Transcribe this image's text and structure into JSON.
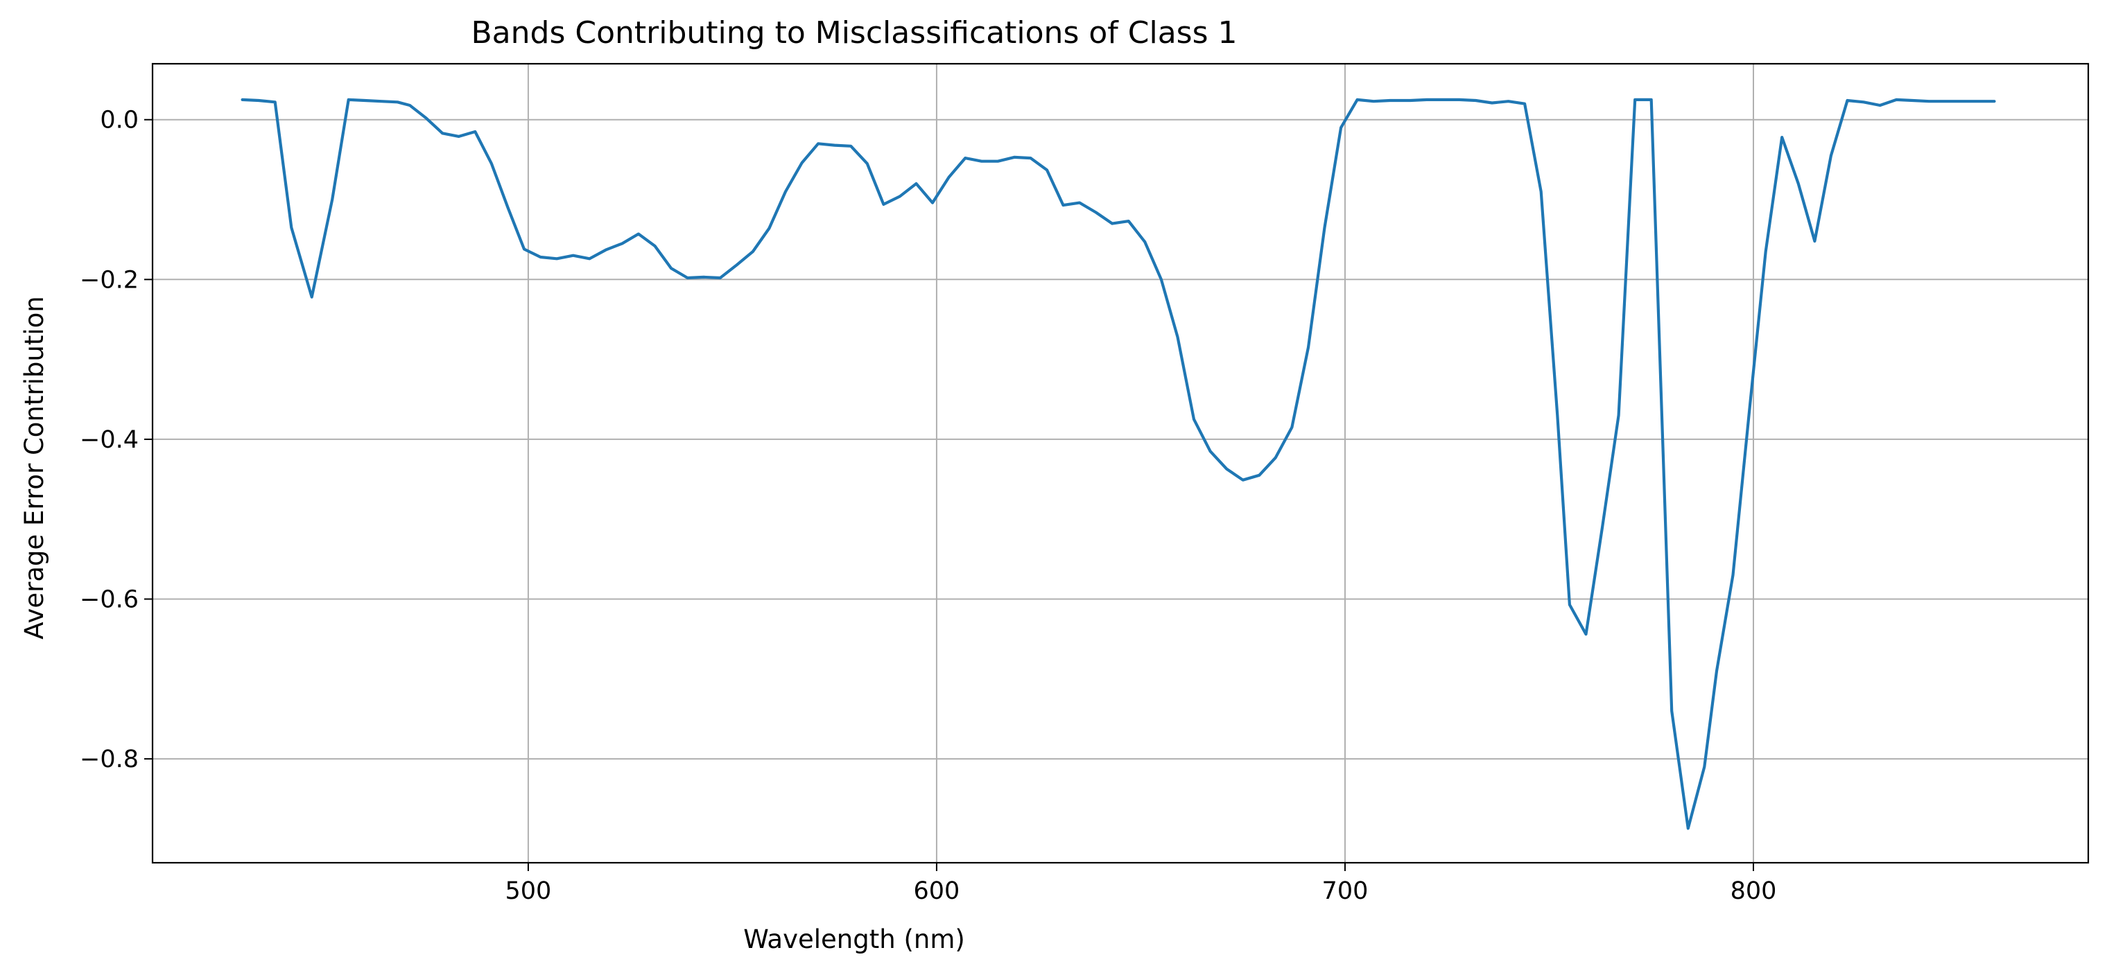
{
  "chart_data": {
    "type": "line",
    "title": "Bands Contributing to Misclassifications of Class 1",
    "xlabel": "Wavelength (nm)",
    "ylabel": "Average Error Contribution",
    "xlim": [
      408,
      882
    ],
    "ylim": [
      -0.93,
      0.07
    ],
    "xticks": [
      500,
      600,
      700,
      800
    ],
    "xtick_labels": [
      "500",
      "600",
      "700",
      "800"
    ],
    "yticks": [
      0.0,
      -0.2,
      -0.4,
      -0.6,
      -0.8
    ],
    "ytick_labels": [
      "0.0",
      "−0.2",
      "−0.4",
      "−0.6",
      "−0.8"
    ],
    "grid": true,
    "line_color": "#1f77b4",
    "series": [
      {
        "x": [
          430,
          434,
          438,
          442,
          447,
          452,
          456,
          460,
          464,
          468,
          471,
          475,
          479,
          483,
          487,
          491,
          495,
          499,
          503,
          507,
          511,
          515,
          519,
          523,
          527,
          531,
          535,
          539,
          543,
          547,
          551,
          555,
          559,
          563,
          567,
          571,
          575,
          579,
          583,
          587,
          591,
          595,
          599,
          603,
          607,
          611,
          615,
          619,
          623,
          627,
          631,
          635,
          639,
          643,
          647,
          651,
          655,
          659,
          663,
          667,
          671,
          675,
          679,
          683,
          687,
          691,
          695,
          699,
          703,
          707,
          711,
          716,
          720,
          724,
          728,
          732,
          736,
          740,
          744,
          748,
          752,
          755,
          759,
          763,
          767,
          771,
          775,
          780,
          784,
          788,
          791,
          795,
          799,
          803,
          807,
          811,
          815,
          819,
          823,
          827,
          831,
          835,
          839,
          843,
          847,
          851,
          855,
          859
        ],
        "y": [
          0.025,
          0.024,
          0.022,
          -0.135,
          -0.222,
          -0.1,
          0.025,
          0.024,
          0.023,
          0.022,
          0.018,
          0.002,
          -0.017,
          -0.021,
          -0.015,
          -0.055,
          -0.11,
          -0.162,
          -0.172,
          -0.174,
          -0.17,
          -0.174,
          -0.163,
          -0.155,
          -0.143,
          -0.158,
          -0.186,
          -0.198,
          -0.197,
          -0.198,
          -0.182,
          -0.165,
          -0.136,
          -0.09,
          -0.054,
          -0.03,
          -0.032,
          -0.033,
          -0.055,
          -0.106,
          -0.096,
          -0.08,
          -0.104,
          -0.072,
          -0.048,
          -0.052,
          -0.052,
          -0.047,
          -0.048,
          -0.063,
          -0.107,
          -0.104,
          -0.116,
          -0.13,
          -0.127,
          -0.153,
          -0.2,
          -0.272,
          -0.375,
          -0.415,
          -0.437,
          -0.451,
          -0.445,
          -0.423,
          -0.385,
          -0.285,
          -0.135,
          -0.01,
          0.025,
          0.023,
          0.024,
          0.024,
          0.025,
          0.025,
          0.025,
          0.024,
          0.021,
          0.023,
          0.02,
          -0.09,
          -0.37,
          -0.607,
          -0.644,
          -0.51,
          -0.37,
          0.025,
          0.025,
          -0.74,
          -0.887,
          -0.81,
          -0.69,
          -0.57,
          -0.365,
          -0.165,
          -0.022,
          -0.08,
          -0.152,
          -0.045,
          0.024,
          0.022,
          0.018,
          0.025,
          0.024,
          0.023,
          0.023,
          0.023,
          0.023,
          0.023
        ]
      }
    ]
  }
}
